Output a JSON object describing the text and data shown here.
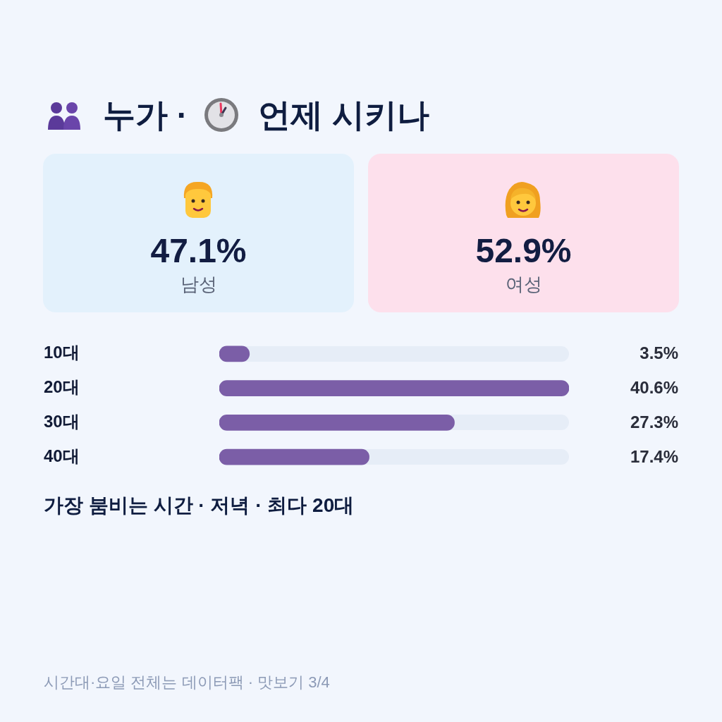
{
  "chart_data": [
    {
      "type": "other",
      "title": "누가 · 언제 시키나",
      "categories": [
        "남성",
        "여성"
      ],
      "value_labels": [
        "47.1%",
        "52.9%"
      ],
      "colors": [
        "#e3f1fc",
        "#fde0ec"
      ]
    },
    {
      "type": "bar",
      "orientation": "horizontal",
      "categories": [
        "10대",
        "20대",
        "30대",
        "40대"
      ],
      "values": [
        3.5,
        40.6,
        27.3,
        17.4
      ],
      "value_labels": [
        "3.5%",
        "40.6%",
        "27.3%",
        "17.4%"
      ],
      "color": "#7b5ea7",
      "annotations": [
        "가장 붐비는 시간 · 저녁 · 최다 20대",
        "시간대·요일 전체는 데이터팩 · 맛보기 3/4"
      ]
    }
  ]
}
